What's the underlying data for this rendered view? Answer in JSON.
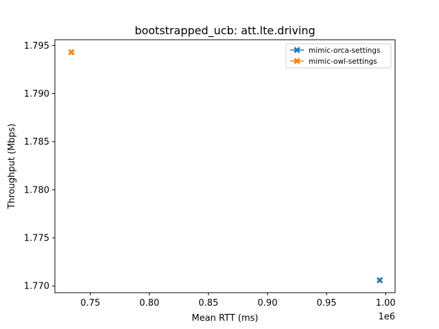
{
  "chart_data": {
    "type": "scatter",
    "title": "bootstrapped_ucb: att.lte.driving",
    "xlabel": "Mean RTT (ms)",
    "ylabel": "Throughput (Mbps)",
    "x_offset_text": "1e6",
    "x_scale_factor": 1000000,
    "xlim": [
      720000,
      1008000
    ],
    "ylim": [
      1.7693,
      1.7956
    ],
    "x_ticks": [
      750000,
      800000,
      850000,
      900000,
      950000,
      1000000
    ],
    "x_tick_labels": [
      "0.75",
      "0.80",
      "0.85",
      "0.90",
      "0.95",
      "1.00"
    ],
    "y_ticks": [
      1.77,
      1.775,
      1.78,
      1.785,
      1.79,
      1.795
    ],
    "y_tick_labels": [
      "1.770",
      "1.775",
      "1.780",
      "1.785",
      "1.790",
      "1.795"
    ],
    "grid": false,
    "legend_position": "top-right",
    "series": [
      {
        "name": "mimic-orca-settings",
        "color": "#1f77b4",
        "marker": "X",
        "points": [
          [
            995000,
            1.7706
          ]
        ]
      },
      {
        "name": "mimic-owl-settings",
        "color": "#ff7f0e",
        "marker": "X",
        "points": [
          [
            734000,
            1.7943
          ]
        ]
      }
    ]
  }
}
